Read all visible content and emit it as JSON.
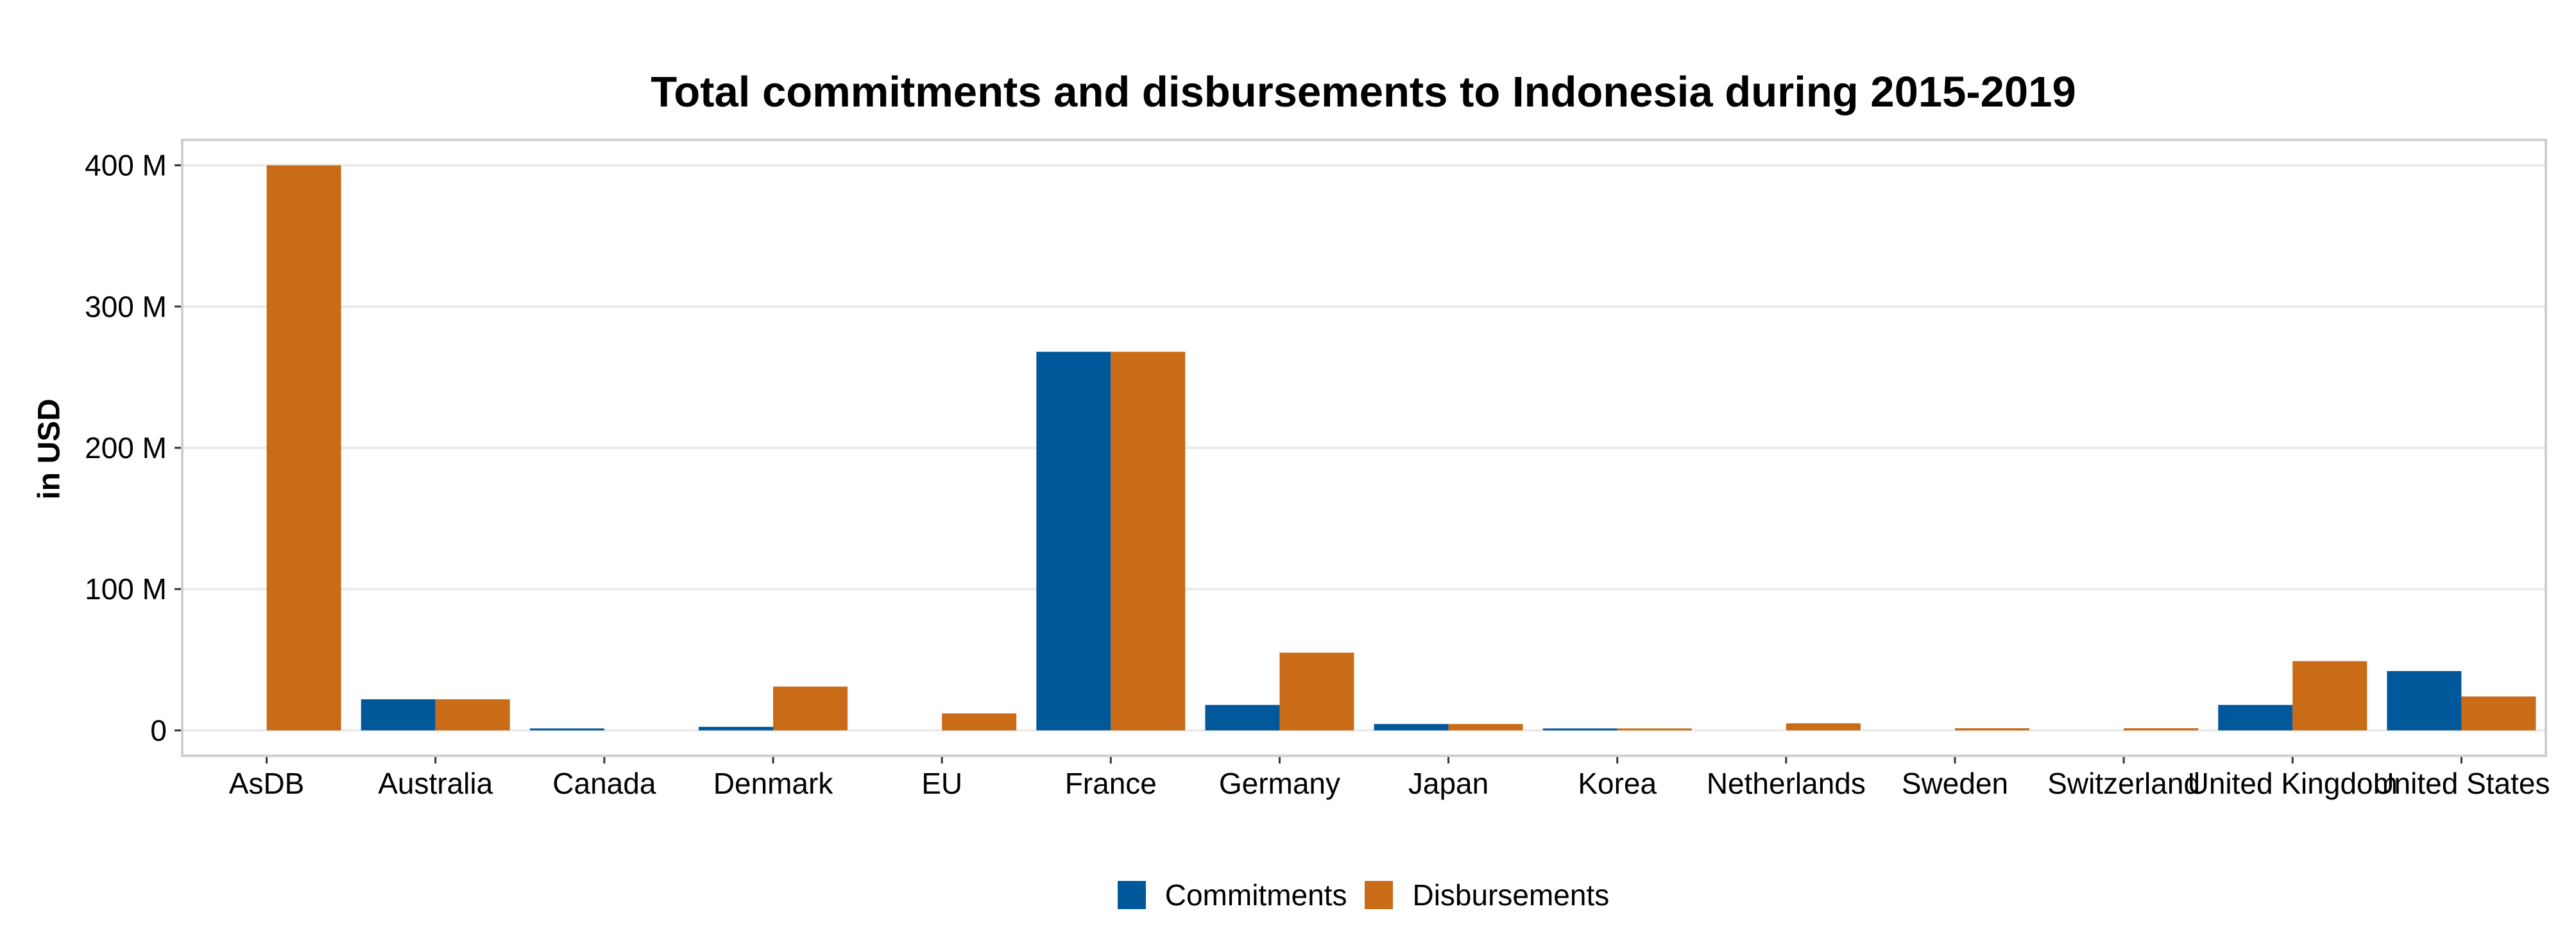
{
  "chart_data": {
    "type": "bar",
    "title": "Total commitments and disbursements to Indonesia during 2015-2019",
    "xlabel": "",
    "ylabel": "in USD",
    "categories": [
      "AsDB",
      "Australia",
      "Canada",
      "Denmark",
      "EU",
      "France",
      "Germany",
      "Japan",
      "Korea",
      "Netherlands",
      "Sweden",
      "Switzerland",
      "United Kingdom",
      "United States"
    ],
    "series": [
      {
        "name": "Commitments",
        "color": "#00589a",
        "values": [
          0,
          22000000,
          400000,
          2500000,
          0,
          268000000,
          18000000,
          4500000,
          800000,
          0,
          0,
          0,
          18000000,
          42000000
        ]
      },
      {
        "name": "Disbursements",
        "color": "#c96b17",
        "values": [
          400000000,
          22000000,
          0,
          31000000,
          12000000,
          268000000,
          55000000,
          4500000,
          1000000,
          5000000,
          1500000,
          1500000,
          49000000,
          24000000
        ]
      }
    ],
    "ylim": [
      -18000000,
      418000000
    ],
    "yticks": [
      0,
      100000000,
      200000000,
      300000000,
      400000000
    ],
    "ytick_labels": [
      "0",
      "100 M",
      "200 M",
      "300 M",
      "400 M"
    ],
    "grid": true,
    "legend_position": "bottom"
  }
}
